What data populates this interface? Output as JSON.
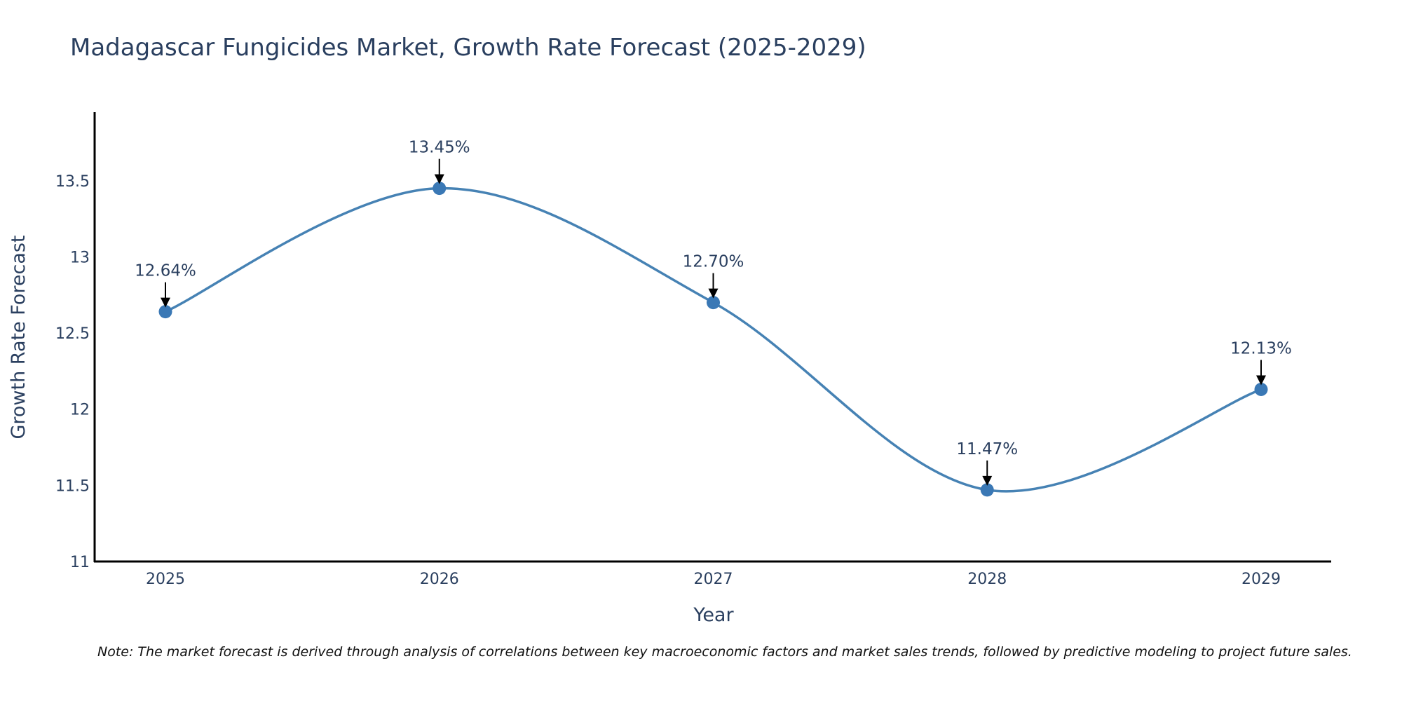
{
  "chart_data": {
    "type": "line",
    "title": "Madagascar Fungicides Market, Growth Rate Forecast (2025-2029)",
    "xlabel": "Year",
    "ylabel": "Growth Rate Forecast",
    "categories": [
      "2025",
      "2026",
      "2027",
      "2028",
      "2029"
    ],
    "values": [
      12.64,
      13.45,
      12.7,
      11.47,
      12.13
    ],
    "data_labels": [
      "12.64%",
      "13.45%",
      "12.70%",
      "11.47%",
      "12.13%"
    ],
    "yticks": [
      11,
      11.5,
      12,
      12.5,
      13,
      13.5
    ],
    "ytick_labels": [
      "11",
      "11.5",
      "12",
      "12.5",
      "13",
      "13.5"
    ],
    "ylim": [
      11,
      13.95
    ],
    "grid": false,
    "line_color": "#4682b4",
    "marker_color": "#3a78b5",
    "line_shape": "spline"
  },
  "note": "Note: The market forecast is derived through analysis of correlations between key macroeconomic factors and market sales trends, followed by predictive modeling to project future sales."
}
